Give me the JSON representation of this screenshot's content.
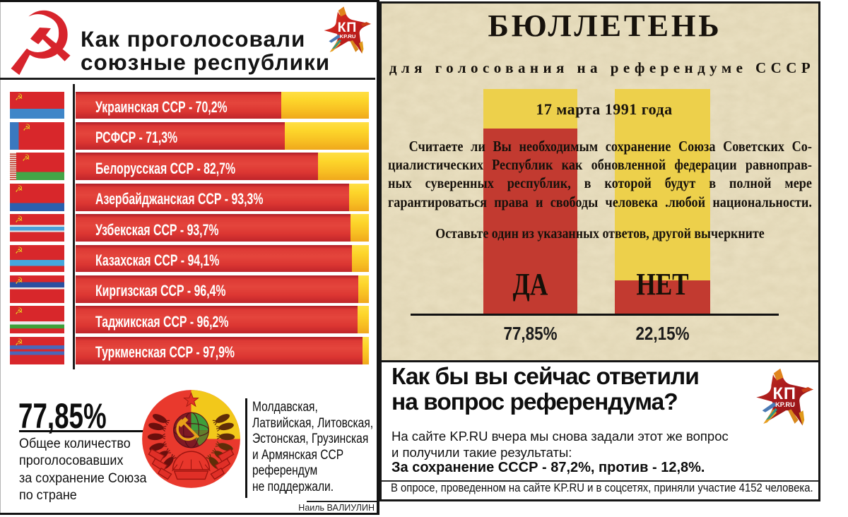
{
  "chart_data": [
    {
      "id": "republics-vote",
      "type": "bar",
      "orientation": "horizontal",
      "unit": "%",
      "xlim": [
        0,
        100
      ],
      "title": "Как проголосовали союзные республики",
      "legend": null,
      "grid": false,
      "items": [
        {
          "label": "Украинская ССР - 70,2%",
          "republic": "Украинская ССР",
          "value": 70.2,
          "flag": "ukraine"
        },
        {
          "label": "РСФСР - 71,3%",
          "republic": "РСФСР",
          "value": 71.3,
          "flag": "rsfsr"
        },
        {
          "label": "Белорусская ССР - 82,7%",
          "republic": "Белорусская ССР",
          "value": 82.7,
          "flag": "byelorussia"
        },
        {
          "label": "Азербайджанская ССР - 93,3%",
          "republic": "Азербайджанская ССР",
          "value": 93.3,
          "flag": "azerbaijan"
        },
        {
          "label": "Узбекская ССР - 93,7%",
          "republic": "Узбекская ССР",
          "value": 93.7,
          "flag": "uzbek"
        },
        {
          "label": "Казахская ССР - 94,1%",
          "republic": "Казахская ССР",
          "value": 94.1,
          "flag": "kazakh"
        },
        {
          "label": "Киргизская ССР - 96,4%",
          "republic": "Киргизская ССР",
          "value": 96.4,
          "flag": "kirghiz"
        },
        {
          "label": "Таджикская ССР - 96,2%",
          "republic": "Таджикская ССР",
          "value": 96.2,
          "flag": "tajik"
        },
        {
          "label": "Туркменская ССР - 97,9%",
          "republic": "Туркменская ССР",
          "value": 97.9,
          "flag": "turkmen"
        }
      ],
      "colors": {
        "for_votes": "#d93327",
        "remainder": "#f8c81c"
      }
    },
    {
      "id": "ballot-result",
      "type": "bar",
      "orientation": "vertical",
      "categories": [
        "ДА",
        "НЕТ"
      ],
      "values": [
        77.85,
        22.15
      ],
      "value_labels": [
        "77,85%",
        "22,15%"
      ],
      "drawn_red_fraction": [
        0.825,
        0.148
      ],
      "colors": {
        "filled_red": "#c23a30",
        "background_yellow": "#edd04b"
      }
    }
  ],
  "left_panel": {
    "hammer_sickle_icon": "☭",
    "title_line1": "Как проголосовали",
    "title_line2": "союзные республики",
    "kp_logo": {
      "kp": "КП",
      "kpru": "KP.RU"
    },
    "total": {
      "value": "77,85%",
      "caption_lines": [
        "Общее количество",
        "проголосовавших",
        "за сохранение Союза",
        "по стране"
      ]
    },
    "emblem_icon": "ussr-coat-of-arms",
    "not_supported_lines": [
      "Молдавская,",
      "Латвийская, Литовская,",
      "Эстонская, Грузинская",
      "и Армянская ССР",
      "референдум",
      "не поддержали."
    ],
    "credit": "Наиль ВАЛИУЛИН"
  },
  "ballot": {
    "title": "БЮЛЛЕТЕНЬ",
    "subtitle": "для голосования на референдуме СССР",
    "date": "17 марта 1991 года",
    "question_lines": [
      "Считаете ли Вы необходимым сохранение Союза Советских Со-",
      "циалистических Республик как обновленной федерации равноправ-",
      "ных суверенных республик, в которой будут в полной мере",
      "гарантироваться права и свободы человека .любой национальности."
    ],
    "instruction": "Оставьте один из указанных ответов, другой вычеркните"
  },
  "poll": {
    "headline_line1": "Как бы вы сейчас ответили",
    "headline_line2": "на вопрос референдума?",
    "kp_logo": {
      "kp": "КП",
      "kpru": "KP.RU"
    },
    "body_line1": "На сайте KP.RU вчера мы снова задали этот же вопрос",
    "body_line2": "и получили такие результаты:",
    "result_line": "За сохранение СССР - 87,2%, против - 12,8%.",
    "footnote": "В опросе, проведенном на сайте KP.RU и в соцсетях, приняли участие 4152 человека."
  }
}
